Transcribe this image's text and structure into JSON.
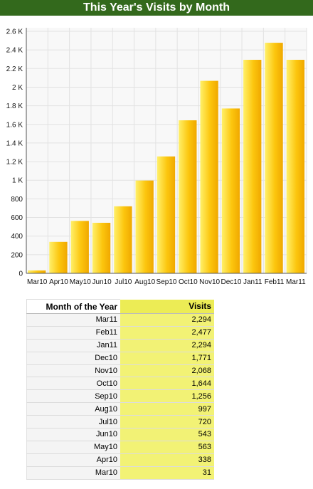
{
  "title": "This Year's Visits by Month",
  "colors": {
    "title_bg": "#33691c",
    "bar_light": "#fff06a",
    "bar_dark": "#f0a800",
    "table_highlight": "#ecec55"
  },
  "table": {
    "headers": [
      "Month of the Year",
      "Visits"
    ],
    "rows": [
      [
        "Mar11",
        "2,294"
      ],
      [
        "Feb11",
        "2,477"
      ],
      [
        "Jan11",
        "2,294"
      ],
      [
        "Dec10",
        "1,771"
      ],
      [
        "Nov10",
        "2,068"
      ],
      [
        "Oct10",
        "1,644"
      ],
      [
        "Sep10",
        "1,256"
      ],
      [
        "Aug10",
        "997"
      ],
      [
        "Jul10",
        "720"
      ],
      [
        "Jun10",
        "543"
      ],
      [
        "May10",
        "563"
      ],
      [
        "Apr10",
        "338"
      ],
      [
        "Mar10",
        "31"
      ]
    ]
  },
  "chart_data": {
    "type": "bar",
    "title": "This Year's Visits by Month",
    "xlabel": "",
    "ylabel": "",
    "categories": [
      "Mar10",
      "Apr10",
      "May10",
      "Jun10",
      "Jul10",
      "Aug10",
      "Sep10",
      "Oct10",
      "Nov10",
      "Dec10",
      "Jan11",
      "Feb11",
      "Mar11"
    ],
    "values": [
      31,
      338,
      563,
      543,
      720,
      997,
      1256,
      1644,
      2068,
      1771,
      2294,
      2477,
      2294
    ],
    "ylim": [
      0,
      2600
    ],
    "yticks": [
      0,
      200,
      400,
      600,
      800,
      1000,
      1200,
      1400,
      1600,
      1800,
      2000,
      2200,
      2400,
      2600
    ],
    "ytick_labels": [
      "0",
      "200",
      "400",
      "600",
      "800",
      "1 K",
      "1.2 K",
      "1.4 K",
      "1.6 K",
      "1.8 K",
      "2 K",
      "2.2 K",
      "2.4 K",
      "2.6 K"
    ],
    "grid": true,
    "legend": "none"
  }
}
